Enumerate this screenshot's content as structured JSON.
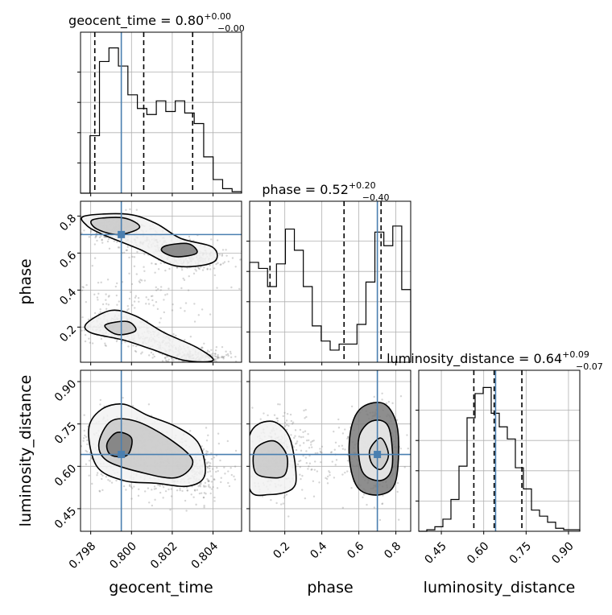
{
  "chart_data": {
    "type": "corner",
    "truth_color": "#4a7fb0",
    "parameters": [
      {
        "name": "geocent_time",
        "axis_label": "geocent_time",
        "range": [
          0.7975,
          0.8054
        ],
        "ticks": [
          0.798,
          0.8,
          0.802,
          0.804
        ],
        "tick_labels": [
          "0.798",
          "0.800",
          "0.802",
          "0.804"
        ],
        "title_main": "geocent_time = 0.80",
        "title_sup": "+0.00",
        "title_sub": "−0.00",
        "quantiles": [
          0.7982,
          0.8006,
          0.803
        ],
        "truth": 0.7995,
        "hist": [
          0,
          0.38,
          0.87,
          0.96,
          0.84,
          0.65,
          0.56,
          0.52,
          0.61,
          0.54,
          0.61,
          0.53,
          0.46,
          0.24,
          0.09,
          0.03,
          0.01
        ]
      },
      {
        "name": "phase",
        "axis_label": "phase",
        "range": [
          0.01,
          0.88
        ],
        "ticks": [
          0.2,
          0.4,
          0.6,
          0.8
        ],
        "tick_labels": [
          "0.2",
          "0.4",
          "0.6",
          "0.8"
        ],
        "title_main": "phase = 0.52",
        "title_sup": "+0.20",
        "title_sub": "−0.40",
        "quantiles": [
          0.12,
          0.52,
          0.72
        ],
        "truth": 0.7,
        "hist": [
          0.66,
          0.62,
          0.5,
          0.65,
          0.88,
          0.74,
          0.5,
          0.24,
          0.14,
          0.08,
          0.12,
          0.12,
          0.25,
          0.53,
          0.86,
          0.77,
          0.9,
          0.48
        ]
      },
      {
        "name": "luminosity_distance",
        "axis_label": "luminosity_distance",
        "range": [
          0.37,
          0.94
        ],
        "ticks": [
          0.45,
          0.6,
          0.75,
          0.9
        ],
        "tick_labels": [
          "0.45",
          "0.60",
          "0.75",
          "0.90"
        ],
        "title_main": "luminosity_distance = 0.64",
        "title_sup": "+0.09",
        "title_sub": "−0.07",
        "quantiles": [
          0.565,
          0.637,
          0.735
        ],
        "truth": 0.642,
        "hist": [
          0,
          0.01,
          0.03,
          0.08,
          0.21,
          0.43,
          0.75,
          0.91,
          0.95,
          0.78,
          0.69,
          0.61,
          0.42,
          0.28,
          0.14,
          0.1,
          0.06,
          0.02,
          0.01,
          0.01
        ]
      }
    ],
    "grid": true
  }
}
